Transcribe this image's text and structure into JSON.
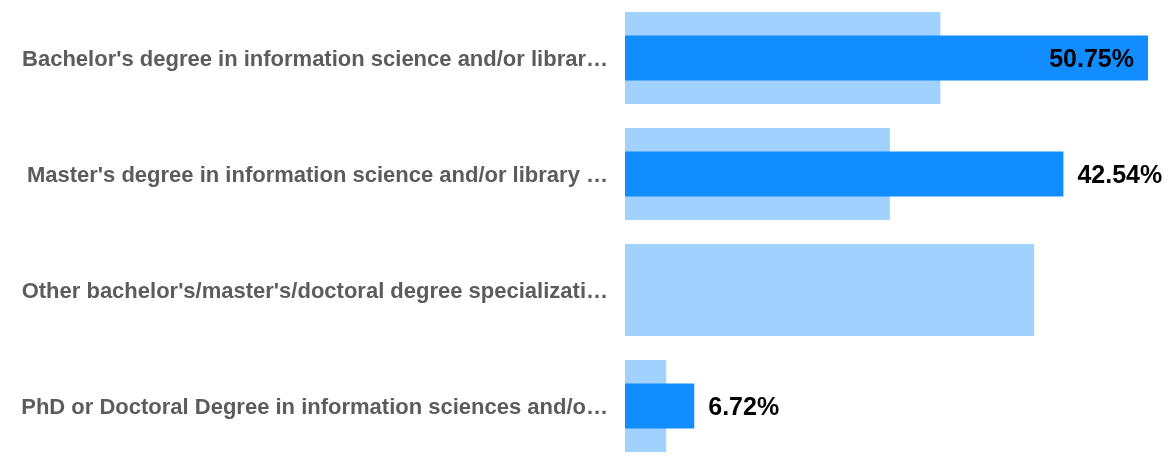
{
  "chart_data": {
    "type": "bar",
    "orientation": "horizontal",
    "tick_labels": "y",
    "categories": [
      "Bachelor's degree in information science and/or librar…",
      "Master's degree in information science and/or library …",
      "Other bachelor's/master's/doctoral degree specializati…",
      "PhD or Doctoral Degree in information sciences and/o…"
    ],
    "series": [
      {
        "color": "#a0d1ff",
        "values": [
          30.6,
          25.7,
          39.7,
          4.0
        ]
      },
      {
        "color": "#118dff",
        "values": [
          50.75,
          42.54,
          null,
          6.72
        ],
        "value_labels": [
          "50.75%",
          "42.54%",
          null,
          "6.72%"
        ]
      }
    ]
  }
}
